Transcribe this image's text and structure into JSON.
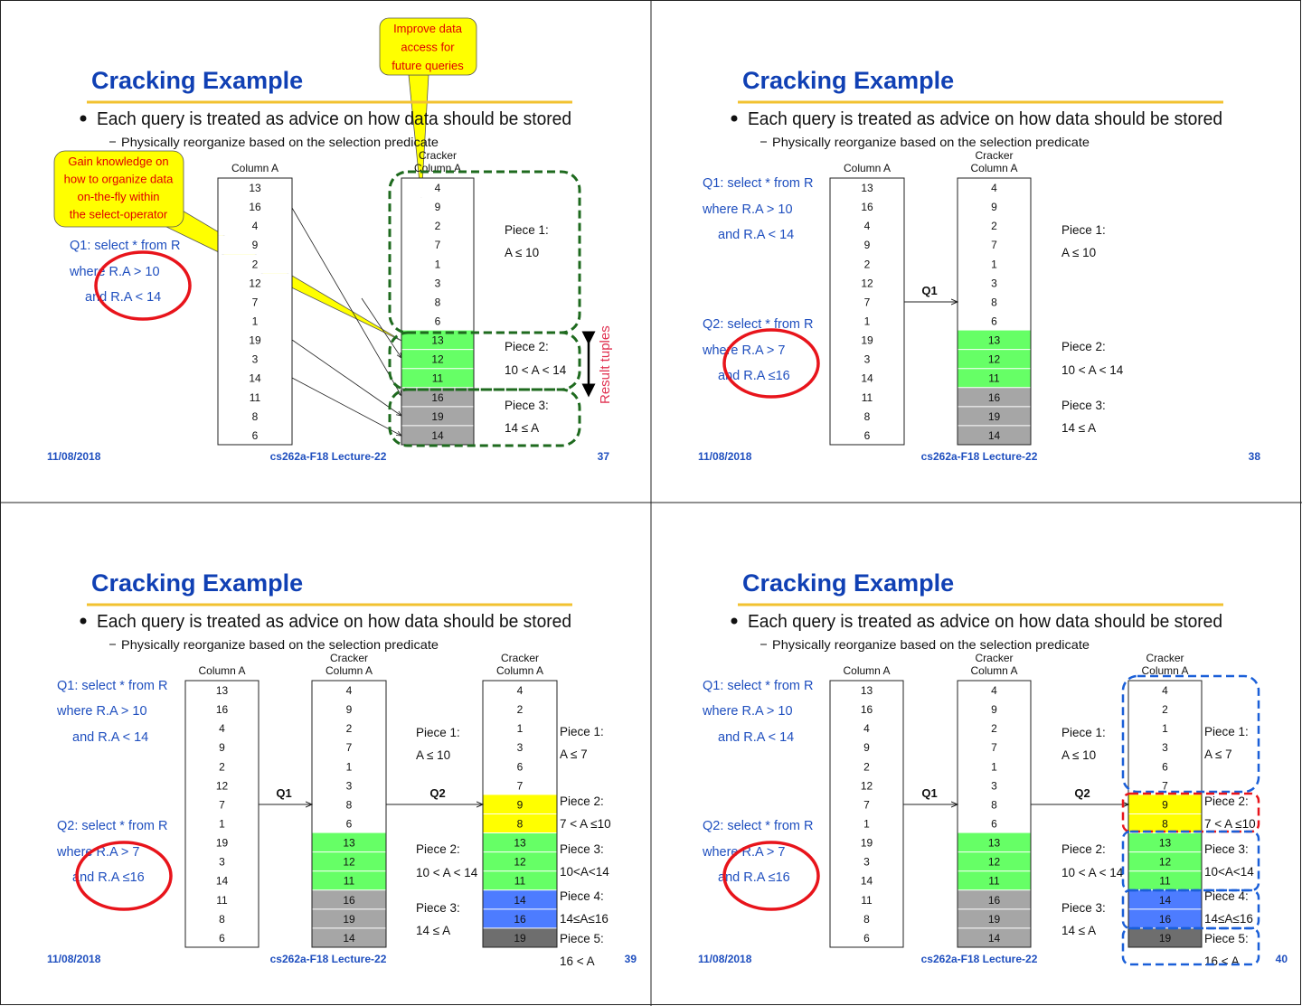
{
  "palette": {
    "w": "#ffffff",
    "g": "#66ff66",
    "gr": "#a6a6a6",
    "y": "#ffff00",
    "b": "#4d7cff",
    "dg": "#6e6e6e",
    "title": "#1040b4",
    "rule": "#f2c230",
    "circle": "#e8141b",
    "dash_green": "#1e6a1e",
    "dash_blue": "#1a5fd8",
    "dash_red": "#e8141b"
  },
  "slides": [
    {
      "title": "Cracking Example",
      "bullet": "Each query is treated as advice on how data should be stored",
      "sub_bullet": "Physically reorganize based on the selection predicate",
      "footer": {
        "date": "11/08/2018",
        "course": "cs262a-F18 Lecture-22",
        "page": "37"
      },
      "queries": [
        {
          "lines": [
            "Q1: select * from R",
            "where R.A > 10",
            "and R.A < 14"
          ]
        }
      ],
      "columns": [
        {
          "header": [
            "",
            "Column A"
          ],
          "values": [
            "13",
            "16",
            "4",
            "9",
            "2",
            "12",
            "7",
            "1",
            "19",
            "3",
            "14",
            "11",
            "8",
            "6"
          ],
          "colors": [
            "w",
            "w",
            "w",
            "w",
            "w",
            "w",
            "w",
            "w",
            "w",
            "w",
            "w",
            "w",
            "w",
            "w"
          ]
        },
        {
          "header": [
            "Cracker",
            "Column A"
          ],
          "values": [
            "4",
            "9",
            "2",
            "7",
            "1",
            "3",
            "8",
            "6",
            "13",
            "12",
            "11",
            "16",
            "19",
            "14"
          ],
          "colors": [
            "w",
            "w",
            "w",
            "w",
            "w",
            "w",
            "w",
            "w",
            "g",
            "g",
            "g",
            "gr",
            "gr",
            "gr"
          ]
        }
      ],
      "arrow_labels": [],
      "piece_groups": [
        [
          {
            "label": "Piece 1:",
            "cond": "A ≤ 10"
          },
          {
            "label": "Piece 2:",
            "cond": "10 < A < 14"
          },
          {
            "label": "Piece 3:",
            "cond": "14 ≤ A"
          }
        ]
      ],
      "callouts": [
        {
          "lines": [
            "Improve data",
            "access for",
            "future queries"
          ]
        },
        {
          "lines": [
            "Gain knowledge on",
            "how to organize data",
            "on-the-fly within",
            "the select-operator"
          ]
        }
      ],
      "result_label": "Result tuples"
    },
    {
      "title": "Cracking Example",
      "bullet": "Each query is treated as advice on how data should be stored",
      "sub_bullet": "Physically reorganize based on the selection predicate",
      "footer": {
        "date": "11/08/2018",
        "course": "cs262a-F18 Lecture-22",
        "page": "38"
      },
      "queries": [
        {
          "lines": [
            "Q1: select * from R",
            "where R.A > 10",
            "and R.A < 14"
          ]
        },
        {
          "lines": [
            "Q2: select * from R",
            "where R.A > 7",
            "and R.A ≤16"
          ]
        }
      ],
      "columns": [
        {
          "header": [
            "",
            "Column A"
          ],
          "values": [
            "13",
            "16",
            "4",
            "9",
            "2",
            "12",
            "7",
            "1",
            "19",
            "3",
            "14",
            "11",
            "8",
            "6"
          ],
          "colors": [
            "w",
            "w",
            "w",
            "w",
            "w",
            "w",
            "w",
            "w",
            "w",
            "w",
            "w",
            "w",
            "w",
            "w"
          ]
        },
        {
          "header": [
            "Cracker",
            "Column A"
          ],
          "values": [
            "4",
            "9",
            "2",
            "7",
            "1",
            "3",
            "8",
            "6",
            "13",
            "12",
            "11",
            "16",
            "19",
            "14"
          ],
          "colors": [
            "w",
            "w",
            "w",
            "w",
            "w",
            "w",
            "w",
            "w",
            "g",
            "g",
            "g",
            "gr",
            "gr",
            "gr"
          ]
        }
      ],
      "arrow_labels": [
        "Q1"
      ],
      "piece_groups": [
        [
          {
            "label": "Piece 1:",
            "cond": "A ≤ 10"
          },
          {
            "label": "Piece 2:",
            "cond": "10 < A < 14"
          },
          {
            "label": "Piece 3:",
            "cond": "14 ≤ A"
          }
        ]
      ]
    },
    {
      "title": "Cracking Example",
      "bullet": "Each query is treated as advice on how data should be stored",
      "sub_bullet": "Physically reorganize based on the selection predicate",
      "footer": {
        "date": "11/08/2018",
        "course": "cs262a-F18 Lecture-22",
        "page": "39"
      },
      "queries": [
        {
          "lines": [
            "Q1: select * from R",
            "where R.A > 10",
            "and R.A < 14"
          ]
        },
        {
          "lines": [
            "Q2: select * from R",
            "where R.A > 7",
            "and R.A ≤16"
          ]
        }
      ],
      "columns": [
        {
          "header": [
            "",
            "Column A"
          ],
          "values": [
            "13",
            "16",
            "4",
            "9",
            "2",
            "12",
            "7",
            "1",
            "19",
            "3",
            "14",
            "11",
            "8",
            "6"
          ],
          "colors": [
            "w",
            "w",
            "w",
            "w",
            "w",
            "w",
            "w",
            "w",
            "w",
            "w",
            "w",
            "w",
            "w",
            "w"
          ]
        },
        {
          "header": [
            "Cracker",
            "Column A"
          ],
          "values": [
            "4",
            "9",
            "2",
            "7",
            "1",
            "3",
            "8",
            "6",
            "13",
            "12",
            "11",
            "16",
            "19",
            "14"
          ],
          "colors": [
            "w",
            "w",
            "w",
            "w",
            "w",
            "w",
            "w",
            "w",
            "g",
            "g",
            "g",
            "gr",
            "gr",
            "gr"
          ]
        },
        {
          "header": [
            "Cracker",
            "Column A"
          ],
          "values": [
            "4",
            "2",
            "1",
            "3",
            "6",
            "7",
            "9",
            "8",
            "13",
            "12",
            "11",
            "14",
            "16",
            "19"
          ],
          "colors": [
            "w",
            "w",
            "w",
            "w",
            "w",
            "w",
            "y",
            "y",
            "g",
            "g",
            "g",
            "b",
            "b",
            "dg"
          ]
        }
      ],
      "arrow_labels": [
        "Q1",
        "Q2"
      ],
      "piece_groups": [
        [
          {
            "label": "Piece 1:",
            "cond": "A ≤ 10"
          },
          {
            "label": "Piece 2:",
            "cond": "10 < A < 14"
          },
          {
            "label": "Piece 3:",
            "cond": "14 ≤ A"
          }
        ],
        [
          {
            "label": "Piece 1:",
            "cond": "A ≤ 7"
          },
          {
            "label": "Piece 2:",
            "cond": "7 < A ≤10"
          },
          {
            "label": "Piece 3:",
            "cond": "10<A<14"
          },
          {
            "label": "Piece 4:",
            "cond": "14≤A≤16"
          },
          {
            "label": "Piece 5:",
            "cond": "16 < A"
          }
        ]
      ]
    },
    {
      "title": "Cracking Example",
      "bullet": "Each query is treated as advice on how data should be stored",
      "sub_bullet": "Physically reorganize based on the selection predicate",
      "footer": {
        "date": "11/08/2018",
        "course": "cs262a-F18 Lecture-22",
        "page": "40"
      },
      "queries": [
        {
          "lines": [
            "Q1: select * from R",
            "where R.A > 10",
            "and R.A < 14"
          ]
        },
        {
          "lines": [
            "Q2: select * from R",
            "where R.A > 7",
            "and R.A ≤16"
          ]
        }
      ],
      "columns": [
        {
          "header": [
            "",
            "Column A"
          ],
          "values": [
            "13",
            "16",
            "4",
            "9",
            "2",
            "12",
            "7",
            "1",
            "19",
            "3",
            "14",
            "11",
            "8",
            "6"
          ],
          "colors": [
            "w",
            "w",
            "w",
            "w",
            "w",
            "w",
            "w",
            "w",
            "w",
            "w",
            "w",
            "w",
            "w",
            "w"
          ]
        },
        {
          "header": [
            "Cracker",
            "Column A"
          ],
          "values": [
            "4",
            "9",
            "2",
            "7",
            "1",
            "3",
            "8",
            "6",
            "13",
            "12",
            "11",
            "16",
            "19",
            "14"
          ],
          "colors": [
            "w",
            "w",
            "w",
            "w",
            "w",
            "w",
            "w",
            "w",
            "g",
            "g",
            "g",
            "gr",
            "gr",
            "gr"
          ]
        },
        {
          "header": [
            "Cracker",
            "Column A"
          ],
          "values": [
            "4",
            "2",
            "1",
            "3",
            "6",
            "7",
            "9",
            "8",
            "13",
            "12",
            "11",
            "14",
            "16",
            "19"
          ],
          "colors": [
            "w",
            "w",
            "w",
            "w",
            "w",
            "w",
            "y",
            "y",
            "g",
            "g",
            "g",
            "b",
            "b",
            "dg"
          ]
        }
      ],
      "arrow_labels": [
        "Q1",
        "Q2"
      ],
      "piece_groups": [
        [
          {
            "label": "Piece 1:",
            "cond": "A ≤ 10"
          },
          {
            "label": "Piece 2:",
            "cond": "10 < A < 14"
          },
          {
            "label": "Piece 3:",
            "cond": "14 ≤ A"
          }
        ],
        [
          {
            "label": "Piece 1:",
            "cond": "A ≤ 7"
          },
          {
            "label": "Piece 2:",
            "cond": "7 < A ≤10"
          },
          {
            "label": "Piece 3:",
            "cond": "10<A<14"
          },
          {
            "label": "Piece 4:",
            "cond": "14≤A≤16"
          },
          {
            "label": "Piece 5:",
            "cond": "16 < A"
          }
        ]
      ]
    }
  ]
}
